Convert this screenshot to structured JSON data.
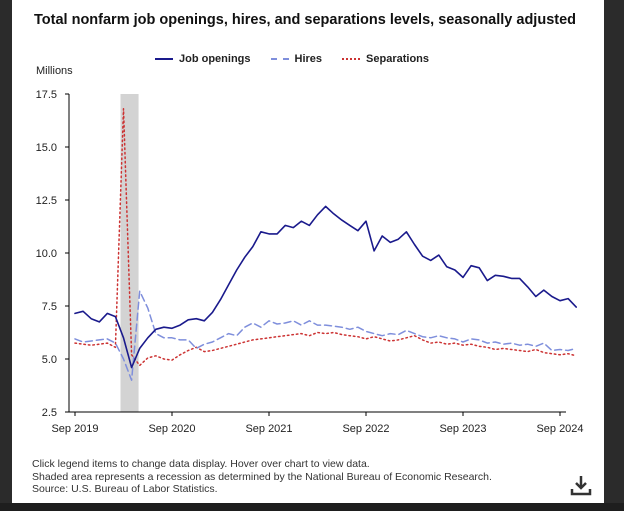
{
  "chart_data": {
    "type": "line",
    "title": "Total nonfarm job openings, hires, and separations levels, seasonally adjusted",
    "ylabel": "Millions",
    "xlabel": "",
    "ylim": [
      2.5,
      17.5
    ],
    "yticks": [
      "17.5",
      "15.0",
      "12.5",
      "10.0",
      "7.5",
      "5.0",
      "2.5"
    ],
    "ytick_values": [
      17.5,
      15.0,
      12.5,
      10.0,
      7.5,
      5.0,
      2.5
    ],
    "xticks": [
      "Sep 2019",
      "Sep 2020",
      "Sep 2021",
      "Sep 2022",
      "Sep 2023",
      "Sep 2024"
    ],
    "x_start": "Sep 2019",
    "x_end": "Sep 2024",
    "recession": {
      "start": "Mar 2020",
      "end": "Apr 2020"
    },
    "series": [
      {
        "name": "Job openings",
        "color": "#1a1a8c",
        "dash": "solid",
        "values": [
          7.15,
          7.25,
          6.9,
          6.75,
          7.15,
          7.0,
          6.0,
          4.6,
          5.5,
          6.0,
          6.4,
          6.5,
          6.45,
          6.6,
          6.85,
          6.9,
          6.8,
          7.2,
          7.8,
          8.5,
          9.2,
          9.8,
          10.3,
          11.0,
          10.9,
          10.9,
          11.3,
          11.2,
          11.5,
          11.3,
          11.8,
          12.2,
          11.85,
          11.55,
          11.3,
          11.05,
          11.5,
          10.1,
          10.8,
          10.5,
          10.65,
          11.0,
          10.4,
          9.85,
          9.65,
          9.9,
          9.35,
          9.2,
          8.85,
          9.4,
          9.3,
          8.7,
          8.95,
          8.9,
          8.8,
          8.8,
          8.4,
          7.95,
          8.25,
          7.95,
          7.75,
          7.85,
          7.45
        ]
      },
      {
        "name": "Hires",
        "color": "#7f8fdc",
        "dash": "dashed",
        "values": [
          5.95,
          5.8,
          5.85,
          5.9,
          5.95,
          5.75,
          5.0,
          4.0,
          8.2,
          7.4,
          6.2,
          6.0,
          6.0,
          5.9,
          5.9,
          5.5,
          5.7,
          5.8,
          6.0,
          6.2,
          6.1,
          6.5,
          6.7,
          6.5,
          6.8,
          6.65,
          6.7,
          6.8,
          6.6,
          6.8,
          6.6,
          6.6,
          6.55,
          6.5,
          6.4,
          6.5,
          6.3,
          6.2,
          6.1,
          6.2,
          6.15,
          6.35,
          6.2,
          6.05,
          6.0,
          6.1,
          6.0,
          5.95,
          5.8,
          5.95,
          5.9,
          5.75,
          5.8,
          5.7,
          5.75,
          5.65,
          5.7,
          5.6,
          5.75,
          5.4,
          5.45,
          5.4,
          5.5
        ]
      },
      {
        "name": "Separations",
        "color": "#cc3333",
        "dash": "dotted",
        "values": [
          5.75,
          5.7,
          5.65,
          5.7,
          5.75,
          5.55,
          16.8,
          5.2,
          4.7,
          5.05,
          5.15,
          5.0,
          4.95,
          5.2,
          5.4,
          5.55,
          5.35,
          5.4,
          5.5,
          5.6,
          5.7,
          5.8,
          5.9,
          5.95,
          6.0,
          6.05,
          6.1,
          6.15,
          6.2,
          6.1,
          6.25,
          6.2,
          6.25,
          6.15,
          6.1,
          6.05,
          5.95,
          6.05,
          5.95,
          5.85,
          5.9,
          6.0,
          6.1,
          5.9,
          5.75,
          5.8,
          5.7,
          5.75,
          5.65,
          5.7,
          5.6,
          5.55,
          5.45,
          5.5,
          5.45,
          5.4,
          5.35,
          5.45,
          5.3,
          5.25,
          5.2,
          5.25,
          5.15
        ]
      }
    ]
  },
  "notes": [
    "Click legend items to change data display. Hover over chart to view data.",
    "Shaded area represents a recession as determined by the National Bureau of Economic Research.",
    "Source: U.S. Bureau of Labor Statistics."
  ],
  "download_icon": "download-icon"
}
